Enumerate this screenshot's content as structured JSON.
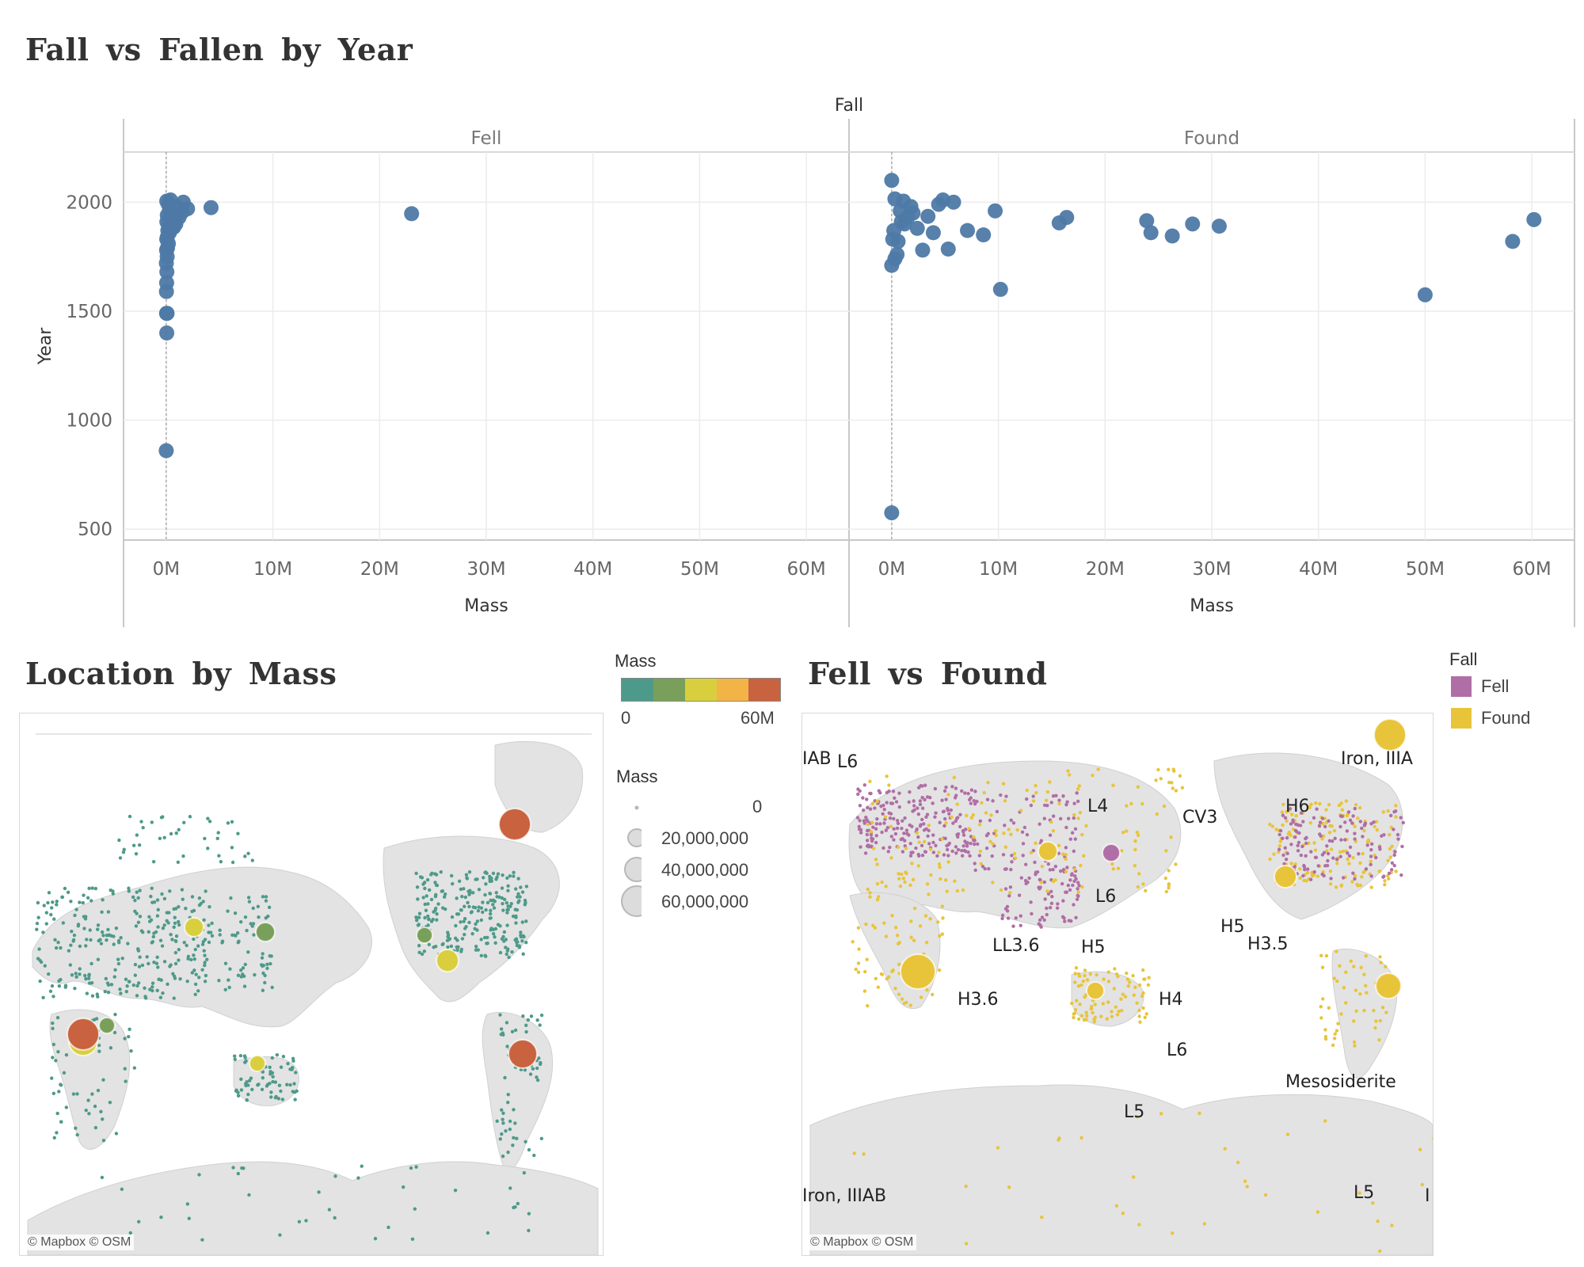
{
  "scatter_title": "Fall vs Fallen by Year",
  "location_title": "Location by Mass",
  "fellfound_title": "Fell vs Found",
  "map_credit": "© Mapbox © OSM",
  "color_legend": {
    "title": "Mass",
    "min_label": "0",
    "max_label": "60M",
    "colors": [
      "#4e9a8a",
      "#79a05a",
      "#d9cf3e",
      "#f2b447",
      "#c8623f"
    ]
  },
  "size_legend": {
    "title": "Mass",
    "items": [
      "0",
      "20,000,000",
      "40,000,000",
      "60,000,000"
    ]
  },
  "fall_legend": {
    "title": "Fall",
    "items": [
      {
        "label": "Fell",
        "color": "#b06ea6"
      },
      {
        "label": "Found",
        "color": "#e8c43a"
      }
    ]
  },
  "fell_found_labels": [
    "IAB",
    "L6",
    "Iron, IIIA",
    "L4",
    "CV3",
    "H6",
    "L6",
    "H5",
    "H3.5",
    "LL3.6",
    "H5",
    "H3.6",
    "H4",
    "L6",
    "Mesosiderite",
    "L5",
    "Iron, IIIAB",
    "L5",
    "I"
  ],
  "chart_data": [
    {
      "type": "scatter",
      "title": "Fall vs Fallen by Year",
      "facet_header": "Fall",
      "xlabel": "Mass",
      "ylabel": "Year",
      "x_ticks": [
        "0M",
        "10M",
        "20M",
        "30M",
        "40M",
        "50M",
        "60M"
      ],
      "y_ticks": [
        "500",
        "1000",
        "1500",
        "2000"
      ],
      "xlim": [
        -4000000,
        64000000
      ],
      "ylim": [
        450,
        2230
      ],
      "grid": true,
      "color": "#4e79a7",
      "panels": [
        {
          "name": "Fell",
          "points": [
            [
              0,
              860
            ],
            [
              50000,
              1400
            ],
            [
              30000,
              1490
            ],
            [
              80000,
              1490
            ],
            [
              20000,
              1590
            ],
            [
              40000,
              1630
            ],
            [
              60000,
              1680
            ],
            [
              10000,
              1720
            ],
            [
              90000,
              1750
            ],
            [
              30000,
              1780
            ],
            [
              120000,
              1790
            ],
            [
              200000,
              1810
            ],
            [
              50000,
              1830
            ],
            [
              100000,
              1840
            ],
            [
              300000,
              1860
            ],
            [
              150000,
              1870
            ],
            [
              500000,
              1880
            ],
            [
              700000,
              1885
            ],
            [
              250000,
              1890
            ],
            [
              900000,
              1900
            ],
            [
              60000,
              1910
            ],
            [
              400000,
              1920
            ],
            [
              1200000,
              1930
            ],
            [
              800000,
              1935
            ],
            [
              100000,
              1940
            ],
            [
              600000,
              1950
            ],
            [
              1500000,
              1955
            ],
            [
              300000,
              1960
            ],
            [
              2000000,
              1970
            ],
            [
              4200000,
              1975
            ],
            [
              1000000,
              1980
            ],
            [
              200000,
              1990
            ],
            [
              1600000,
              2000
            ],
            [
              50000,
              2005
            ],
            [
              400000,
              2010
            ],
            [
              23000000,
              1947
            ]
          ]
        },
        {
          "name": "Found",
          "points": [
            [
              0,
              575
            ],
            [
              10200000,
              1600
            ],
            [
              50000000,
              1575
            ],
            [
              58200000,
              1820
            ],
            [
              60200000,
              1920
            ],
            [
              0,
              1710
            ],
            [
              300000,
              1740
            ],
            [
              500000,
              1760
            ],
            [
              2900000,
              1780
            ],
            [
              5300000,
              1785
            ],
            [
              8600000,
              1850
            ],
            [
              7100000,
              1870
            ],
            [
              3900000,
              1860
            ],
            [
              2400000,
              1880
            ],
            [
              1200000,
              1900
            ],
            [
              600000,
              1820
            ],
            [
              100000,
              1830
            ],
            [
              200000,
              1870
            ],
            [
              900000,
              1910
            ],
            [
              1500000,
              1930
            ],
            [
              3400000,
              1935
            ],
            [
              2000000,
              1950
            ],
            [
              4400000,
              1990
            ],
            [
              800000,
              1960
            ],
            [
              1800000,
              1980
            ],
            [
              5800000,
              2000
            ],
            [
              4800000,
              2010
            ],
            [
              300000,
              2015
            ],
            [
              1100000,
              2005
            ],
            [
              0,
              2100
            ],
            [
              9700000,
              1960
            ],
            [
              15700000,
              1905
            ],
            [
              16400000,
              1930
            ],
            [
              23900000,
              1915
            ],
            [
              24300000,
              1860
            ],
            [
              26300000,
              1845
            ],
            [
              28200000,
              1900
            ],
            [
              30700000,
              1890
            ]
          ]
        }
      ]
    }
  ]
}
